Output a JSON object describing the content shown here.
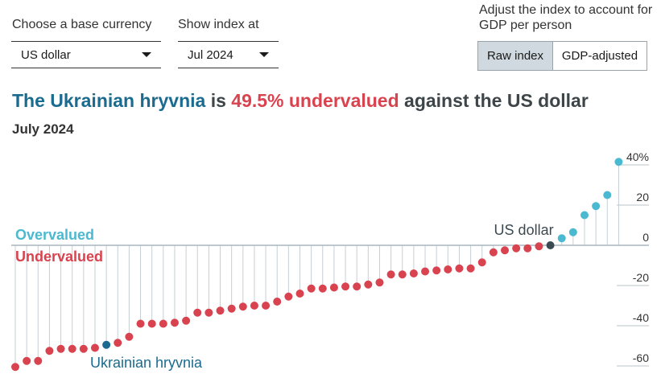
{
  "controls": {
    "base_currency_label": "Choose a base currency",
    "base_currency_value": "US dollar",
    "index_at_label": "Show index at",
    "index_at_value": "Jul 2024",
    "adjust_label": "Adjust the index to account for GDP per person",
    "raw_index_label": "Raw index",
    "gdp_adjusted_label": "GDP-adjusted"
  },
  "headline": {
    "currency": "The Ukrainian hryvnia",
    "connector": " is ",
    "valuation": "49.5% undervalued",
    "rest": " against the US dollar"
  },
  "subtitle": "July 2024",
  "colors": {
    "overvalued": "#4bb9cf",
    "undervalued": "#d9434f",
    "base": "#3b4a52",
    "highlight": "#1a6b8f"
  },
  "chart_data": {
    "type": "scatter",
    "title": "The Ukrainian hryvnia is 49.5% undervalued against the US dollar",
    "subtitle": "July 2024",
    "ylim": [
      -64,
      45
    ],
    "yticks": [
      40,
      20,
      0,
      -20,
      -40,
      -60
    ],
    "ytick_labels": [
      "40%",
      "20",
      "0",
      "-20",
      "-40",
      "-60"
    ],
    "grid": true,
    "series": [
      {
        "name": "Undervalued",
        "values": [
          -60.5,
          -57.5,
          -57.5,
          -52.5,
          -51.5,
          -51.5,
          -51.5,
          -51,
          -49.5,
          -48.5,
          -45.5,
          -39,
          -39,
          -39,
          -38.5,
          -37.5,
          -33.5,
          -33.5,
          -32.5,
          -31.5,
          -30.5,
          -30,
          -30,
          -28,
          -25.5,
          -24,
          -21.5,
          -21.5,
          -21,
          -20.5,
          -20.5,
          -19.5,
          -18.5,
          -14.5,
          -14.5,
          -14,
          -13,
          -12.5,
          -12,
          -11.5,
          -11.5,
          -8.5,
          -3.5,
          -2.5,
          -1.5,
          -1.5,
          -0.5
        ]
      },
      {
        "name": "US dollar",
        "values": [
          0
        ]
      },
      {
        "name": "Overvalued",
        "values": [
          3.5,
          6.5,
          15,
          19.5,
          25,
          41.5
        ]
      }
    ],
    "labels": {
      "overvalued": "Overvalued",
      "undervalued": "Undervalued",
      "base": "US dollar",
      "highlight": "Ukrainian hryvnia"
    },
    "highlight_index": 8
  }
}
